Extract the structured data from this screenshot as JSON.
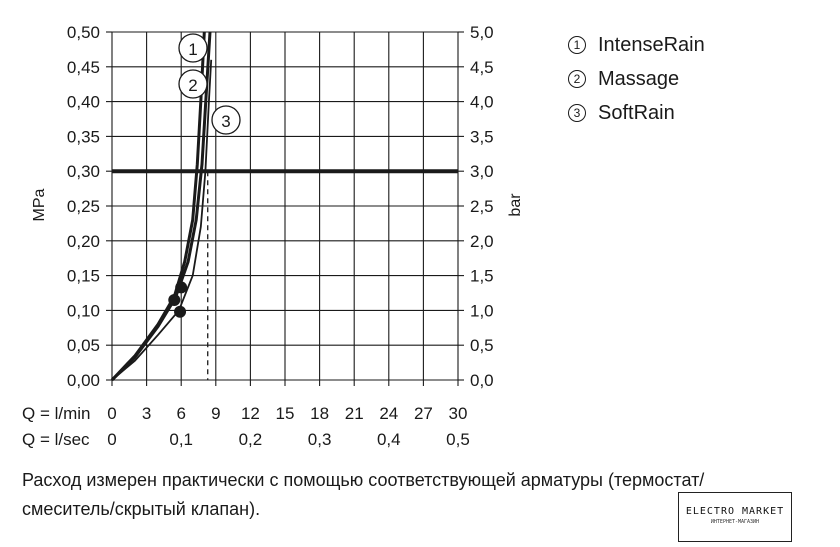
{
  "chart_data": {
    "type": "line",
    "y_left": {
      "label": "MPa",
      "ticks": [
        "0,00",
        "0,05",
        "0,10",
        "0,15",
        "0,20",
        "0,25",
        "0,30",
        "0,35",
        "0,40",
        "0,45",
        "0,50"
      ],
      "range": [
        0,
        0.5
      ]
    },
    "y_right": {
      "label": "bar",
      "ticks": [
        "0,0",
        "0,5",
        "1,0",
        "1,5",
        "2,0",
        "2,5",
        "3,0",
        "3,5",
        "4,0",
        "4,5",
        "5,0"
      ],
      "range": [
        0,
        5
      ]
    },
    "x_lmin": {
      "label": "Q = l/min",
      "ticks": [
        "0",
        "3",
        "6",
        "9",
        "12",
        "15",
        "18",
        "21",
        "24",
        "27",
        "30"
      ],
      "range": [
        0,
        30
      ]
    },
    "x_lsec": {
      "label": "Q = l/sec",
      "ticks": [
        "0",
        "0,1",
        "0,2",
        "0,3",
        "0,4",
        "0,5"
      ]
    },
    "grid": true,
    "reference_line_mpa": 0.3,
    "reference_flow_lmin": 8.3,
    "series": [
      {
        "name": "IntenseRain",
        "x": [
          0,
          2,
          4,
          5.5,
          6.6,
          7.3,
          7.8,
          8.2,
          8.5
        ],
        "y": [
          0,
          0.033,
          0.077,
          0.118,
          0.17,
          0.23,
          0.31,
          0.42,
          0.5
        ],
        "marker_x": 6.0,
        "marker_y": 0.133
      },
      {
        "name": "Massage",
        "x": [
          0,
          2,
          4,
          5.4,
          6.3,
          7.0,
          7.4,
          7.7,
          8.0
        ],
        "y": [
          0,
          0.035,
          0.08,
          0.12,
          0.17,
          0.23,
          0.31,
          0.4,
          0.5
        ],
        "marker_x": 5.4,
        "marker_y": 0.115
      },
      {
        "name": "SoftRain",
        "x": [
          0,
          2,
          4,
          5.8,
          7.0,
          7.7,
          8.1,
          8.4,
          8.6
        ],
        "y": [
          0,
          0.028,
          0.065,
          0.1,
          0.15,
          0.22,
          0.3,
          0.4,
          0.46
        ],
        "marker_x": 5.9,
        "marker_y": 0.098
      }
    ],
    "curve_labels": [
      "1",
      "2",
      "3"
    ]
  },
  "legend": [
    {
      "num": "1",
      "name": "IntenseRain"
    },
    {
      "num": "2",
      "name": "Massage"
    },
    {
      "num": "3",
      "name": "SoftRain"
    }
  ],
  "note": {
    "line1": "Расход измерен практически с помощью соответствующей арматуры (термостат/",
    "line2": "смеситель/скрытый клапан)."
  },
  "watermark": {
    "text": "ELECTRO MARKET",
    "sub": "ИНТЕРНЕТ-МАГАЗИН"
  },
  "colors": {
    "ink": "#1a1a1a",
    "grid": "#1a1a1a",
    "background": "#ffffff"
  }
}
